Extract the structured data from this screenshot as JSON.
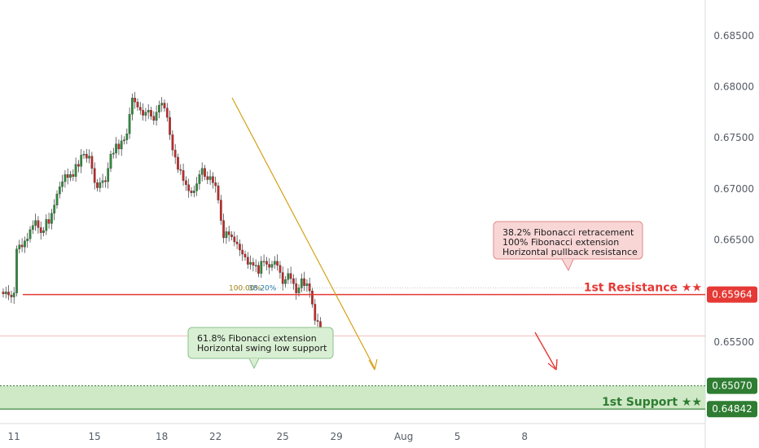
{
  "colors": {
    "up_candle": "#2e8b3a",
    "down_candle": "#c62828",
    "resistance": "#e53935",
    "support": "#2e7d32",
    "support_zone": "#cfe8c6",
    "fib_arrow": "#d4a017",
    "forecast_arrow": "#e53935",
    "resistance_callout_bg": "#f9d6d6",
    "support_callout_bg": "#d9efd3"
  },
  "chart_data": {
    "type": "candlestick",
    "y_axis": {
      "ticks": [
        "0.68500",
        "0.68000",
        "0.67500",
        "0.67000",
        "0.66500",
        "0.66000",
        "0.65500"
      ],
      "tick_values": [
        0.685,
        0.68,
        0.675,
        0.67,
        0.665,
        0.66,
        0.655
      ],
      "ylim": [
        0.647,
        0.6885
      ]
    },
    "x_axis": {
      "ticks": [
        "11",
        "15",
        "18",
        "22",
        "25",
        "29",
        "Aug",
        "5",
        "8"
      ],
      "tick_index": [
        4,
        34,
        59,
        79,
        104,
        124,
        149,
        169,
        194
      ]
    },
    "series": {
      "closes": [
        0.6597,
        0.6599,
        0.6596,
        0.6594,
        0.6598,
        0.6641,
        0.6645,
        0.6643,
        0.6649,
        0.6651,
        0.666,
        0.6664,
        0.6669,
        0.6662,
        0.6657,
        0.6659,
        0.667,
        0.6666,
        0.6676,
        0.6684,
        0.6695,
        0.6702,
        0.6707,
        0.6714,
        0.6711,
        0.6714,
        0.6712,
        0.6724,
        0.6722,
        0.6733,
        0.6734,
        0.673,
        0.6732,
        0.672,
        0.6706,
        0.6701,
        0.6706,
        0.6708,
        0.6707,
        0.672,
        0.6734,
        0.6735,
        0.6744,
        0.6739,
        0.6747,
        0.6748,
        0.6754,
        0.6773,
        0.6789,
        0.6785,
        0.678,
        0.6777,
        0.6772,
        0.6775,
        0.6777,
        0.6771,
        0.6767,
        0.6775,
        0.6782,
        0.6784,
        0.6779,
        0.677,
        0.6753,
        0.6738,
        0.6731,
        0.6719,
        0.6718,
        0.6708,
        0.6704,
        0.6698,
        0.6696,
        0.6698,
        0.6705,
        0.6714,
        0.672,
        0.6712,
        0.6709,
        0.6712,
        0.6706,
        0.6703,
        0.6689,
        0.6669,
        0.6652,
        0.6658,
        0.6655,
        0.6653,
        0.6648,
        0.6646,
        0.664,
        0.6636,
        0.6633,
        0.6626,
        0.6628,
        0.6625,
        0.6625,
        0.6617,
        0.6629,
        0.6629,
        0.6626,
        0.6623,
        0.6626,
        0.6629,
        0.6625,
        0.6618,
        0.6607,
        0.6611,
        0.6617,
        0.6612,
        0.6607,
        0.6598,
        0.6603,
        0.6612,
        0.6605,
        0.6607,
        0.66,
        0.6587,
        0.6571,
        0.657,
        0.655,
        0.6546,
        0.6553,
        0.6558
      ],
      "opens_note": ""
    },
    "resistance": {
      "label": "1st Resistance ★★",
      "price": "0.65964",
      "value": 0.65964
    },
    "support": {
      "label": "1st Support ★★",
      "price": "0.64842",
      "value": 0.64842
    },
    "support_top": {
      "price": "0.65070",
      "value": 0.6507
    },
    "current_price_line": 0.6556,
    "fib_labels": {
      "a": "100.00%",
      "b": "38.20%"
    },
    "callouts": {
      "resistance": [
        "38.2% Fibonacci retracement",
        "100% Fibonacci extension",
        "Horizontal pullback resistance"
      ],
      "support": [
        "61.8% Fibonacci extension",
        "Horizontal swing low support"
      ]
    }
  }
}
